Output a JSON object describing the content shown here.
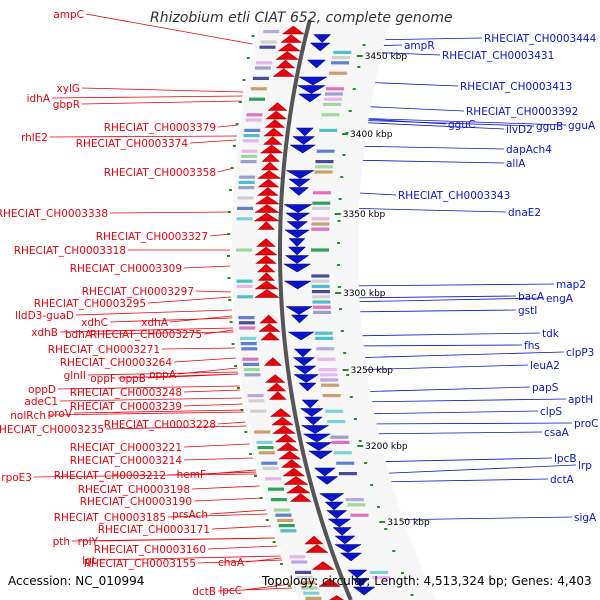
{
  "title": "Rhizobium etli CIAT 652, complete genome",
  "accession": "Accession: NC_010994",
  "topology": "Topology: circular; Length: 4,513,324 bp; Genes: 4,403",
  "colors": {
    "left": "#e8000b",
    "right": "#0a14cc",
    "axis": "#555555"
  },
  "ticks": [
    "3450 kbp",
    "3400 kbp",
    "3350 kbp",
    "3300 kbp",
    "3250 kbp",
    "3200 kbp",
    "3150 kbp"
  ],
  "left_labels": [
    "ampC",
    "xylG",
    "idhA",
    "gbpR",
    "RHECIAT_CH0003379",
    "rhlE2",
    "RHECIAT_CH0003374",
    "RHECIAT_CH0003358",
    "RHECIAT_CH0003338",
    "RHECIAT_CH0003327",
    "RHECIAT_CH0003318",
    "RHECIAT_CH0003309",
    "RHECIAT_CH0003297",
    "RHECIAT_CH0003295",
    "lldD3-guaD",
    "xdhC",
    "xdhA",
    "xdhB",
    "bdhA",
    "RHECIAT_CH0003275",
    "RHECIAT_CH0003271",
    "RHECIAT_CH0003264",
    "glnII",
    "oppF",
    "oppB",
    "oppA",
    "oppD",
    "RHECIAT_CH0003248",
    "adeC1",
    "RHECIAT_CH0003239",
    "nolRch",
    "proV",
    "RHECIAT_CH0003235",
    "RHECIAT_CH0003228",
    "RHECIAT_CH0003221",
    "RHECIAT_CH0003214",
    "rpoE3",
    "RHECIAT_CH0003212",
    "hemF",
    "RHECIAT_CH0003198",
    "RHECIAT_CH0003190",
    "RHECIAT_CH0003185",
    "prsAch",
    "RHECIAT_CH0003171",
    "pth",
    "rplY",
    "RHECIAT_CH0003160",
    "lgt",
    "RHECIAT_CH0003155",
    "chaA",
    "dctB",
    "lpcC"
  ],
  "right_labels": [
    "RHECIAT_CH0003444",
    "ampR",
    "RHECIAT_CH0003431",
    "RHECIAT_CH0003413",
    "RHECIAT_CH0003392",
    "gguC",
    "ilvD2",
    "gguB",
    "gguA",
    "dapAch4",
    "allA",
    "RHECIAT_CH0003343",
    "dnaE2",
    "map2",
    "bacA",
    "engA",
    "gstI",
    "tdk",
    "fhs",
    "clpP3",
    "leuA2",
    "papS",
    "aptH",
    "clpS",
    "proC",
    "csaA",
    "lpcB",
    "lrp",
    "dctA",
    "sigA"
  ]
}
